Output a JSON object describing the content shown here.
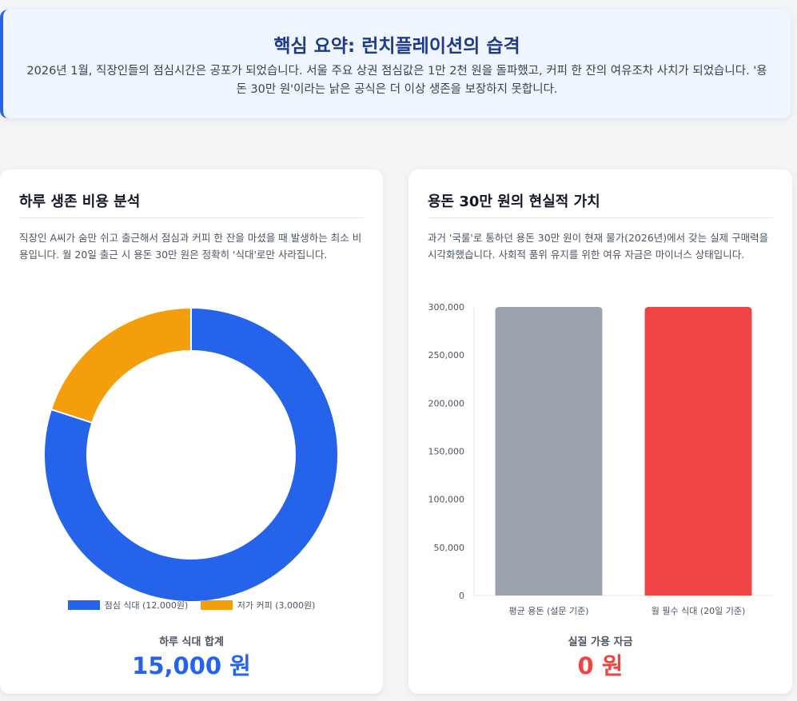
{
  "summary": {
    "title": "핵심 요약: 런치플레이션의 습격",
    "text": "2026년 1월, 직장인들의 점심시간은 공포가 되었습니다. 서울 주요 상권 점심값은 1만 2천 원을 돌파했고, 커피 한 잔의 여유조차 사치가 되었습니다. '용돈 30만 원'이라는 낡은 공식은 더 이상 생존을 보장하지 못합니다."
  },
  "left_card": {
    "title": "하루 생존 비용 분석",
    "description": "직장인 A씨가 숨만 쉬고 출근해서 점심과 커피 한 잔을 마셨을 때 발생하는 최소 비용입니다. 월 20일 출근 시 용돈 30만 원은 정확히 '식대'로만 사라집니다.",
    "total_label": "하루 식대 합계",
    "total_value": "15,000 원"
  },
  "right_card": {
    "title": "용돈 30만 원의 현실적 가치",
    "description": "과거 '국룰'로 통하던 용돈 30만 원이 현재 물가(2026년)에서 갖는 실제 구매력을 시각화했습니다. 사회적 품위 유지를 위한 여유 자금은 마이너스 상태입니다.",
    "total_label": "실질 가용 자금",
    "total_value": "0 원"
  },
  "colors": {
    "lunch": "#2563eb",
    "coffee": "#f59e0b",
    "allowance": "#9ca3af",
    "required": "#ef4444"
  },
  "chart_data": [
    {
      "type": "pie",
      "variant": "doughnut",
      "categories": [
        "점심 식대 (12,000원)",
        "저가 커피 (3,000원)"
      ],
      "values": [
        12000,
        3000
      ],
      "legend_position": "bottom"
    },
    {
      "type": "bar",
      "categories": [
        "평균 용돈 (설문 기준)",
        "월 필수 식대 (20일 기준)"
      ],
      "values": [
        300000,
        300000
      ],
      "ylim": [
        0,
        300000
      ],
      "yticks": [
        "0",
        "50,000",
        "100,000",
        "150,000",
        "200,000",
        "250,000",
        "300,000"
      ],
      "grid": false
    }
  ]
}
